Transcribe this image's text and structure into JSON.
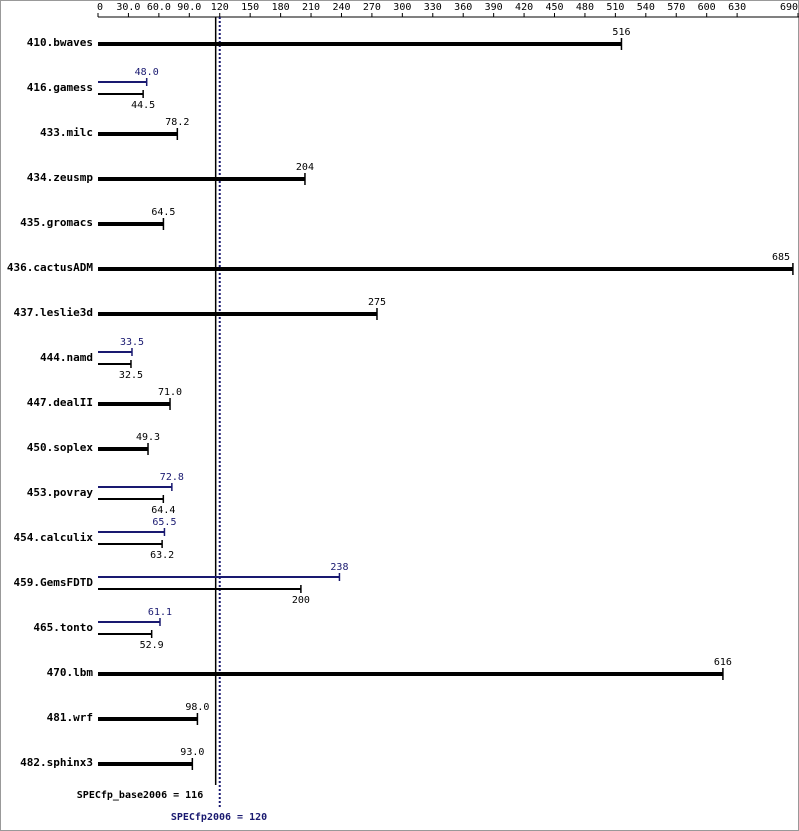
{
  "chart_data": {
    "type": "bar",
    "categories": [
      "410.bwaves",
      "416.gamess",
      "433.milc",
      "434.zeusmp",
      "435.gromacs",
      "436.cactusADM",
      "437.leslie3d",
      "444.namd",
      "447.dealII",
      "450.soplex",
      "453.povray",
      "454.calculix",
      "459.GemsFDTD",
      "465.tonto",
      "470.lbm",
      "481.wrf",
      "482.sphinx3"
    ],
    "series": [
      {
        "color": "#000000",
        "values": [
          516,
          44.5,
          78.2,
          204,
          64.5,
          685,
          275,
          32.5,
          71,
          49.3,
          64.4,
          63.2,
          200,
          52.9,
          616,
          98,
          93
        ],
        "value_labels": [
          "516",
          "44.5",
          "78.2",
          "204",
          "64.5",
          "685",
          "275",
          "32.5",
          "71.0",
          "49.3",
          "64.4",
          "63.2",
          "200",
          "52.9",
          "616",
          "98.0",
          "93.0"
        ]
      },
      {
        "color": "#191970",
        "values": [
          null,
          48,
          null,
          null,
          null,
          null,
          null,
          33.5,
          null,
          null,
          72.8,
          65.5,
          238,
          61.1,
          null,
          null,
          null
        ],
        "value_labels": [
          null,
          "48.0",
          null,
          null,
          null,
          null,
          null,
          "33.5",
          null,
          null,
          "72.8",
          "65.5",
          "238",
          "61.1",
          null,
          null,
          null
        ]
      }
    ],
    "xlim": [
      0,
      691
    ],
    "xticks": [
      0,
      {
        "value": 30,
        "label": "30.0"
      },
      {
        "value": 60,
        "label": "60.0"
      },
      {
        "value": 90,
        "label": "90.0"
      },
      120,
      150,
      180,
      210,
      240,
      270,
      300,
      330,
      360,
      390,
      420,
      450,
      480,
      510,
      540,
      570,
      600,
      630,
      690
    ],
    "reference_lines": [
      {
        "value": 116,
        "label": "SPECfp_base2006 = 116",
        "color": "#000000",
        "style": "solid"
      },
      {
        "value": 120,
        "label": "SPECfp2006 = 120",
        "color": "#191970",
        "style": "dotted"
      }
    ]
  }
}
